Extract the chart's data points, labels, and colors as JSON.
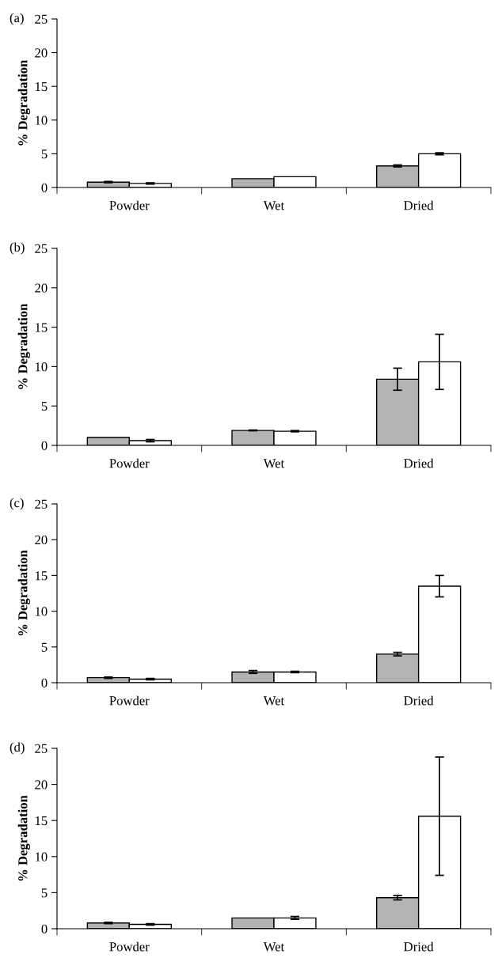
{
  "chart_data": [
    {
      "type": "bar",
      "title": "(a)",
      "ylabel": "% Degradation",
      "categories": [
        "Powder",
        "Wet",
        "Dried"
      ],
      "ylim": [
        0,
        25
      ],
      "yticks": [
        0,
        5,
        10,
        15,
        20,
        25
      ],
      "grid": false,
      "legend": false,
      "series": [
        {
          "color": "#b3b3b3",
          "values": [
            0.8,
            1.3,
            3.2
          ],
          "errors": [
            0.1,
            null,
            0.15
          ]
        },
        {
          "color": "#ffffff",
          "values": [
            0.6,
            1.6,
            5.0
          ],
          "errors": [
            0.1,
            null,
            0.15
          ]
        }
      ]
    },
    {
      "type": "bar",
      "title": "(b)",
      "ylabel": "% Degradation",
      "categories": [
        "Powder",
        "Wet",
        "Dried"
      ],
      "ylim": [
        0,
        25
      ],
      "yticks": [
        0,
        5,
        10,
        15,
        20,
        25
      ],
      "grid": false,
      "legend": false,
      "series": [
        {
          "color": "#b3b3b3",
          "values": [
            1.0,
            1.9,
            8.4
          ],
          "errors": [
            null,
            0.05,
            1.4
          ]
        },
        {
          "color": "#ffffff",
          "values": [
            0.6,
            1.8,
            10.6
          ],
          "errors": [
            0.15,
            0.08,
            3.5
          ]
        }
      ]
    },
    {
      "type": "bar",
      "title": "(c)",
      "ylabel": "% Degradation",
      "categories": [
        "Powder",
        "Wet",
        "Dried"
      ],
      "ylim": [
        0,
        25
      ],
      "yticks": [
        0,
        5,
        10,
        15,
        20,
        25
      ],
      "grid": false,
      "legend": false,
      "series": [
        {
          "color": "#b3b3b3",
          "values": [
            0.7,
            1.5,
            4.0
          ],
          "errors": [
            0.1,
            0.2,
            0.25
          ]
        },
        {
          "color": "#ffffff",
          "values": [
            0.5,
            1.5,
            13.5
          ],
          "errors": [
            0.1,
            0.1,
            1.5
          ]
        }
      ]
    },
    {
      "type": "bar",
      "title": "(d)",
      "ylabel": "% Degradation",
      "categories": [
        "Powder",
        "Wet",
        "Dried"
      ],
      "ylim": [
        0,
        25
      ],
      "yticks": [
        0,
        5,
        10,
        15,
        20,
        25
      ],
      "grid": false,
      "legend": false,
      "series": [
        {
          "color": "#b3b3b3",
          "values": [
            0.8,
            1.5,
            4.3
          ],
          "errors": [
            0.1,
            null,
            0.3
          ]
        },
        {
          "color": "#ffffff",
          "values": [
            0.6,
            1.5,
            15.6
          ],
          "errors": [
            0.1,
            0.2,
            8.2
          ]
        }
      ]
    }
  ]
}
